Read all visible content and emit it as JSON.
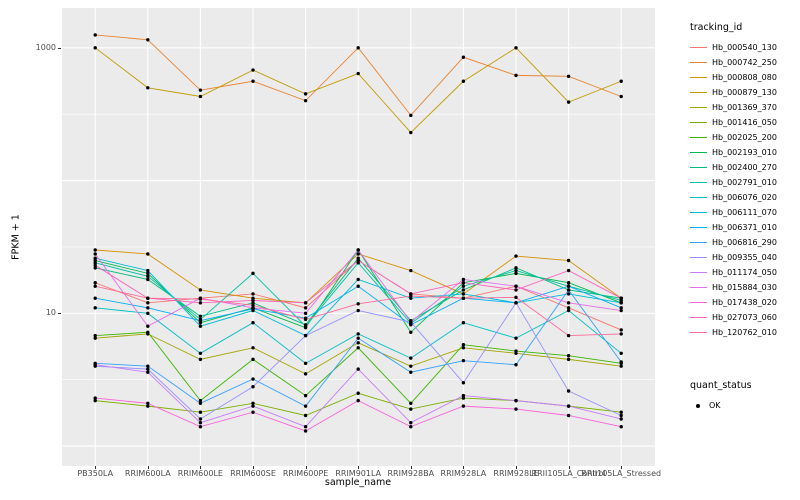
{
  "figure": {
    "y_axis_title": "FPKM + 1",
    "x_axis_title": "sample_name",
    "y_ticks": [
      {
        "label": "1000",
        "log": 3
      },
      {
        "label": "10",
        "log": 1
      }
    ]
  },
  "legend": {
    "tracking_title": "tracking_id",
    "quant_title": "quant_status",
    "quant_items": [
      {
        "label": "OK"
      }
    ]
  },
  "chart_data": {
    "type": "line",
    "title": "",
    "xlabel": "sample_name",
    "ylabel": "FPKM + 1",
    "y_scale": "log10",
    "ylim_log": [
      -0.15,
      3.3
    ],
    "gridlines_major_log": [
      0,
      1,
      2,
      3
    ],
    "gridlines_minor_log": [
      0.5,
      1.5,
      2.5
    ],
    "panel_background": "#EBEBEB",
    "gridline_color": "#FFFFFF",
    "point_color": "#000000",
    "legend_position": "right",
    "x_categories": [
      "PB350LA",
      "RRIM600LA",
      "RRIM600LE",
      "RRIM600SE",
      "RRIM600PE",
      "RRIM901LA",
      "RRIM928BA",
      "RRIM928LA",
      "RRIM928LE",
      "RRII105LA_Control",
      "RRII105LA_Stressed"
    ],
    "series": [
      {
        "name": "Hb_000540_130",
        "color": "#F8766D",
        "values": [
          17,
          12,
          13,
          14,
          11,
          25,
          14,
          13,
          16,
          11,
          7.5
        ]
      },
      {
        "name": "Hb_000742_250",
        "color": "#EA8331",
        "values": [
          1250,
          1150,
          480,
          560,
          400,
          1000,
          310,
          850,
          620,
          610,
          430
        ]
      },
      {
        "name": "Hb_000808_080",
        "color": "#D89000",
        "values": [
          30,
          28,
          15,
          13,
          12,
          28,
          21,
          14,
          27,
          25,
          13
        ]
      },
      {
        "name": "Hb_000879_130",
        "color": "#C09B00",
        "values": [
          1000,
          500,
          430,
          680,
          450,
          640,
          230,
          560,
          1000,
          390,
          560
        ]
      },
      {
        "name": "Hb_001369_370",
        "color": "#A3A500",
        "values": [
          6.5,
          7,
          4.5,
          5.5,
          3.5,
          6,
          4,
          5.5,
          5,
          4.5,
          4
        ]
      },
      {
        "name": "Hb_001416_050",
        "color": "#7CAE00",
        "values": [
          2.2,
          2,
          1.8,
          2.1,
          1.7,
          2.5,
          1.9,
          2.3,
          2.2,
          2,
          1.8
        ]
      },
      {
        "name": "Hb_002025_200",
        "color": "#39B600",
        "values": [
          6.8,
          7.2,
          2.2,
          4.5,
          2.4,
          5.5,
          2.1,
          5.8,
          5.2,
          4.8,
          4.2
        ]
      },
      {
        "name": "Hb_002193_010",
        "color": "#00BB4E",
        "values": [
          25,
          20,
          8.5,
          11,
          7.8,
          30,
          7.2,
          17,
          20,
          17,
          12
        ]
      },
      {
        "name": "Hb_002400_270",
        "color": "#00BF7D",
        "values": [
          22,
          18,
          9.5,
          12,
          8.2,
          26,
          8.8,
          15,
          22,
          15,
          13
        ]
      },
      {
        "name": "Hb_002791_010",
        "color": "#00C1A3",
        "values": [
          24,
          19,
          9,
          20,
          8,
          24,
          8.4,
          16,
          21,
          16,
          12.5
        ]
      },
      {
        "name": "Hb_006076_020",
        "color": "#00BFC4",
        "values": [
          11,
          10,
          5,
          8.5,
          4.2,
          7,
          4.6,
          8.5,
          6.5,
          10.5,
          5
        ]
      },
      {
        "name": "Hb_006111_070",
        "color": "#00BBDA",
        "values": [
          26,
          21,
          8,
          10.5,
          6.8,
          18,
          13,
          14,
          12,
          14,
          12
        ]
      },
      {
        "name": "Hb_006371_010",
        "color": "#00B0F6",
        "values": [
          13,
          11,
          8.8,
          10.8,
          9.2,
          16,
          8.2,
          13,
          12,
          16,
          11
        ]
      },
      {
        "name": "Hb_006816_290",
        "color": "#35A2FF",
        "values": [
          4.2,
          4,
          2.1,
          3.2,
          2,
          6.5,
          3.6,
          4.4,
          4.1,
          15,
          4.3
        ]
      },
      {
        "name": "Hb_009355_040",
        "color": "#9590FF",
        "values": [
          4,
          3.8,
          1.6,
          2.8,
          6.8,
          10.5,
          8.6,
          3,
          12,
          2.6,
          1.7
        ]
      },
      {
        "name": "Hb_011174_050",
        "color": "#C77CFF",
        "values": [
          4.1,
          3.6,
          1.5,
          2,
          1.4,
          3.8,
          1.5,
          2.4,
          2.2,
          2,
          1.6
        ]
      },
      {
        "name": "Hb_015884_030",
        "color": "#E76BF3",
        "values": [
          28,
          8,
          13,
          11,
          10,
          30,
          8.6,
          18,
          16,
          12,
          10.5
        ]
      },
      {
        "name": "Hb_017438_020",
        "color": "#FA62DB",
        "values": [
          2.3,
          2.1,
          1.4,
          1.8,
          1.3,
          2.2,
          1.4,
          2,
          1.9,
          1.7,
          1.4
        ]
      },
      {
        "name": "Hb_027073_060",
        "color": "#FF62BC",
        "values": [
          23,
          13,
          12,
          12.5,
          12,
          25,
          14,
          17,
          15,
          21,
          13
        ]
      },
      {
        "name": "Hb_120762_010",
        "color": "#FF6A98",
        "values": [
          16,
          13,
          12.8,
          11.5,
          9,
          11.8,
          13.5,
          13,
          13.2,
          6.8,
          7
        ]
      }
    ]
  }
}
